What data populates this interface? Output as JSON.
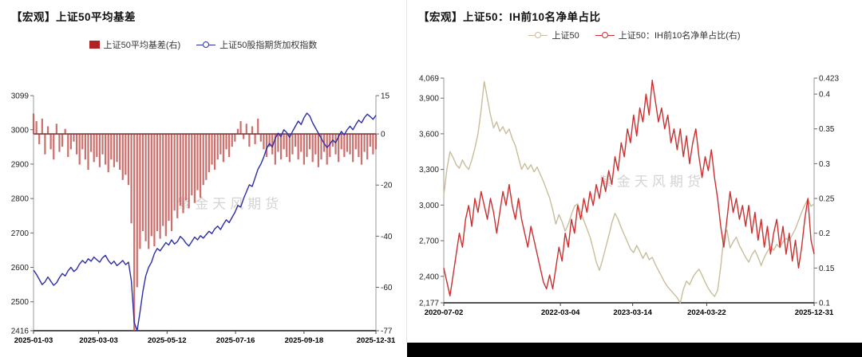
{
  "watermark": "紫金天风期货",
  "chart_data": [
    {
      "type": "bar+line",
      "title": "【宏观】上证50平均基差",
      "legend": [
        {
          "label": "上证50平均基差(右)",
          "type": "bar",
          "color": "#b22222"
        },
        {
          "label": "上证50股指期货加权指数",
          "type": "line",
          "color": "#2d2da8"
        }
      ],
      "x_ticks": [
        {
          "f": 0.0,
          "label": "2025-01-03"
        },
        {
          "f": 0.19,
          "label": "2025-03-03"
        },
        {
          "f": 0.39,
          "label": "2025-05-12"
        },
        {
          "f": 0.59,
          "label": "2025-07-16"
        },
        {
          "f": 0.79,
          "label": "2025-09-18"
        },
        {
          "f": 1.0,
          "label": "2025-12-31"
        }
      ],
      "y_left": {
        "min": 2416,
        "max": 3099,
        "ticks": [
          {
            "v": 3099,
            "label": "3099"
          },
          {
            "v": 3000,
            "label": "3000"
          },
          {
            "v": 2900,
            "label": "2900"
          },
          {
            "v": 2800,
            "label": "2800"
          },
          {
            "v": 2700,
            "label": "2700"
          },
          {
            "v": 2600,
            "label": "2600"
          },
          {
            "v": 2500,
            "label": "2500"
          },
          {
            "v": 2416,
            "label": "2416"
          }
        ]
      },
      "y_right": {
        "min": -77,
        "max": 15,
        "ticks": [
          {
            "v": 15,
            "label": "15"
          },
          {
            "v": 0,
            "label": "0"
          },
          {
            "v": -20,
            "label": "-20"
          },
          {
            "v": -40,
            "label": "-40"
          },
          {
            "v": -60,
            "label": "-60"
          },
          {
            "v": -77,
            "label": "-77"
          }
        ]
      },
      "zero_line": {
        "axis": "right",
        "value": 0,
        "color": "#7e3b3b"
      },
      "series": [
        {
          "id": "basis-bars",
          "name": "上证50平均基差(右)",
          "type": "bar",
          "axis": "right",
          "color": "#c0504d",
          "values": [
            8,
            5,
            -4,
            6,
            -8,
            3,
            -6,
            -10,
            4,
            -7,
            -5,
            2,
            -9,
            -6,
            -3,
            -8,
            -12,
            -6,
            -10,
            -14,
            -7,
            -11,
            -9,
            -13,
            -8,
            -12,
            -15,
            -10,
            -13,
            -11,
            -14,
            -18,
            -16,
            -20,
            -35,
            -77,
            -60,
            -45,
            -38,
            -42,
            -45,
            -40,
            -44,
            -38,
            -41,
            -36,
            -40,
            -34,
            -38,
            -30,
            -33,
            -28,
            -31,
            -26,
            -29,
            -24,
            -27,
            -22,
            -25,
            -20,
            -18,
            -15,
            -12,
            -14,
            -10,
            -8,
            -11,
            -6,
            -9,
            -5,
            -3,
            2,
            5,
            -2,
            4,
            -5,
            3,
            -4,
            6,
            -3,
            -6,
            -9,
            -5,
            -8,
            -12,
            -7,
            -10,
            -6,
            -9,
            -11,
            -8,
            -5,
            -10,
            -7,
            -12,
            -9,
            -6,
            -11,
            -8,
            -13,
            -10,
            -7,
            -12,
            -9,
            -5,
            -8,
            -11,
            -6,
            -9,
            -7,
            -8,
            -11,
            -6,
            -9,
            -12,
            -7,
            -10,
            -5,
            -8,
            -6
          ]
        },
        {
          "id": "index-line",
          "name": "上证50股指期货加权指数",
          "type": "line",
          "axis": "left",
          "color": "#2d2da8",
          "values": [
            2592,
            2580,
            2565,
            2550,
            2558,
            2572,
            2560,
            2548,
            2555,
            2570,
            2582,
            2575,
            2590,
            2600,
            2588,
            2595,
            2610,
            2620,
            2612,
            2625,
            2618,
            2630,
            2622,
            2615,
            2628,
            2635,
            2620,
            2610,
            2618,
            2605,
            2612,
            2620,
            2608,
            2615,
            2560,
            2440,
            2416,
            2470,
            2530,
            2575,
            2600,
            2615,
            2640,
            2655,
            2648,
            2660,
            2672,
            2665,
            2680,
            2668,
            2675,
            2690,
            2682,
            2670,
            2662,
            2675,
            2688,
            2680,
            2692,
            2685,
            2695,
            2705,
            2698,
            2712,
            2720,
            2710,
            2725,
            2738,
            2730,
            2745,
            2760,
            2780,
            2775,
            2800,
            2820,
            2840,
            2835,
            2860,
            2885,
            2900,
            2920,
            2945,
            2960,
            2950,
            2975,
            2990,
            2980,
            3000,
            2992,
            2978,
            2995,
            3010,
            3025,
            3015,
            3035,
            3048,
            3040,
            3020,
            3005,
            2990,
            2975,
            2960,
            2948,
            2958,
            2970,
            2962,
            2980,
            2995,
            2985,
            3000,
            3010,
            3000,
            3015,
            3028,
            3020,
            3035,
            3045,
            3038,
            3030,
            3042
          ]
        }
      ]
    },
    {
      "type": "line",
      "title": "【宏观】上证50：IH前10名净单占比",
      "legend": [
        {
          "label": "上证50",
          "type": "line",
          "color": "#c9bd9b"
        },
        {
          "label": "上证50：IH前10名净单占比(右)",
          "type": "line",
          "color": "#cb2f2f"
        }
      ],
      "x_ticks": [
        {
          "f": 0.0,
          "label": "2020-07-02"
        },
        {
          "f": 0.315,
          "label": "2022-03-04"
        },
        {
          "f": 0.51,
          "label": "2023-03-14"
        },
        {
          "f": 0.71,
          "label": "2024-03-22"
        },
        {
          "f": 1.0,
          "label": "2025-12-31"
        }
      ],
      "y_left": {
        "min": 2177,
        "max": 4069,
        "ticks": [
          {
            "v": 4069,
            "label": "4,069"
          },
          {
            "v": 3900,
            "label": "3,900"
          },
          {
            "v": 3600,
            "label": "3,600"
          },
          {
            "v": 3300,
            "label": "3,300"
          },
          {
            "v": 3000,
            "label": "3,000"
          },
          {
            "v": 2700,
            "label": "2,700"
          },
          {
            "v": 2400,
            "label": "2,400"
          },
          {
            "v": 2177,
            "label": "2,177"
          }
        ]
      },
      "y_right": {
        "min": 0.1,
        "max": 0.423,
        "ticks": [
          {
            "v": 0.423,
            "label": "0.423"
          },
          {
            "v": 0.4,
            "label": "0.4"
          },
          {
            "v": 0.35,
            "label": "0.35"
          },
          {
            "v": 0.3,
            "label": "0.3"
          },
          {
            "v": 0.25,
            "label": "0.25"
          },
          {
            "v": 0.2,
            "label": "0.2"
          },
          {
            "v": 0.15,
            "label": "0.15"
          },
          {
            "v": 0.1,
            "label": "0.1"
          }
        ]
      },
      "series": [
        {
          "id": "sse50-line",
          "name": "上证50",
          "type": "line",
          "axis": "left",
          "color": "#c9bd9b",
          "values": [
            3080,
            3300,
            3450,
            3400,
            3340,
            3310,
            3380,
            3330,
            3300,
            3380,
            3480,
            3600,
            3800,
            4040,
            3900,
            3760,
            3650,
            3700,
            3620,
            3660,
            3600,
            3640,
            3560,
            3500,
            3400,
            3300,
            3350,
            3300,
            3340,
            3280,
            3320,
            3260,
            3200,
            3130,
            3060,
            2960,
            2840,
            2920,
            2860,
            2780,
            2840,
            2920,
            2990,
            3010,
            2940,
            2870,
            2800,
            2730,
            2630,
            2520,
            2450,
            2540,
            2640,
            2740,
            2850,
            2930,
            2880,
            2810,
            2750,
            2690,
            2630,
            2600,
            2660,
            2610,
            2550,
            2600,
            2540,
            2560,
            2500,
            2450,
            2400,
            2350,
            2310,
            2280,
            2250,
            2220,
            2177,
            2290,
            2360,
            2330,
            2390,
            2430,
            2460,
            2410,
            2350,
            2300,
            2260,
            2230,
            2280,
            2480,
            2740,
            2790,
            2640,
            2690,
            2730,
            2660,
            2610,
            2560,
            2520,
            2580,
            2620,
            2560,
            2490,
            2560,
            2610,
            2650,
            2620,
            2670,
            2640,
            2690,
            2720,
            2700,
            2750,
            2800,
            2870,
            2940,
            3000,
            3050,
            2990,
            3010
          ]
        },
        {
          "id": "net-ratio-line",
          "name": "上证50：IH前10名净单占比(右)",
          "type": "line",
          "axis": "right",
          "color": "#cb2f2f",
          "values": [
            0.15,
            0.13,
            0.11,
            0.14,
            0.17,
            0.2,
            0.18,
            0.22,
            0.24,
            0.21,
            0.25,
            0.23,
            0.26,
            0.24,
            0.22,
            0.25,
            0.23,
            0.2,
            0.23,
            0.26,
            0.24,
            0.27,
            0.24,
            0.22,
            0.25,
            0.22,
            0.2,
            0.18,
            0.21,
            0.19,
            0.17,
            0.15,
            0.13,
            0.12,
            0.14,
            0.12,
            0.15,
            0.18,
            0.16,
            0.2,
            0.18,
            0.22,
            0.2,
            0.24,
            0.22,
            0.25,
            0.23,
            0.26,
            0.24,
            0.27,
            0.25,
            0.28,
            0.26,
            0.29,
            0.27,
            0.31,
            0.29,
            0.33,
            0.31,
            0.35,
            0.33,
            0.37,
            0.34,
            0.38,
            0.36,
            0.4,
            0.37,
            0.42,
            0.39,
            0.36,
            0.38,
            0.35,
            0.37,
            0.33,
            0.35,
            0.32,
            0.35,
            0.31,
            0.34,
            0.3,
            0.33,
            0.35,
            0.31,
            0.28,
            0.31,
            0.29,
            0.32,
            0.28,
            0.25,
            0.21,
            0.18,
            0.22,
            0.26,
            0.23,
            0.25,
            0.22,
            0.24,
            0.21,
            0.24,
            0.2,
            0.23,
            0.19,
            0.22,
            0.18,
            0.21,
            0.17,
            0.2,
            0.22,
            0.18,
            0.21,
            0.17,
            0.2,
            0.16,
            0.19,
            0.15,
            0.18,
            0.22,
            0.25,
            0.19,
            0.17
          ]
        }
      ]
    }
  ]
}
